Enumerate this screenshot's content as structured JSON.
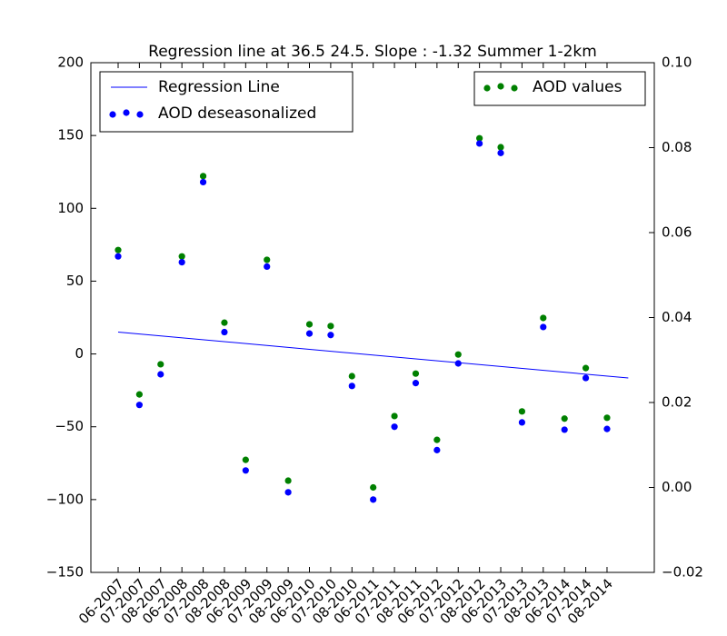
{
  "chart_data": {
    "type": "scatter",
    "title": "Regression line at 36.5 24.5. Slope : -1.32 Summer 1-2km",
    "categories": [
      "06-2007",
      "07-2007",
      "08-2007",
      "06-2008",
      "07-2008",
      "08-2008",
      "06-2009",
      "07-2009",
      "08-2009",
      "06-2010",
      "07-2010",
      "08-2010",
      "06-2011",
      "07-2011",
      "08-2011",
      "06-2012",
      "07-2012",
      "08-2012",
      "06-2013",
      "07-2013",
      "08-2013",
      "06-2014",
      "07-2014",
      "08-2014"
    ],
    "series": [
      {
        "name": "AOD deseasonalized",
        "color": "#0000ff",
        "axis": "y",
        "values": [
          67,
          -35,
          -14,
          63,
          118,
          15,
          -80,
          60,
          -95,
          14,
          13,
          -22,
          -100,
          -50,
          -20,
          -66,
          -6.5,
          144.5,
          138,
          -47,
          18.5,
          -52,
          -16.5,
          -51.5
        ]
      },
      {
        "name": "AOD values",
        "color": "#008000",
        "axis": "y2",
        "values": [
          0.0559,
          0.0219,
          0.029,
          0.0544,
          0.0733,
          0.0388,
          0.0065,
          0.0536,
          0.0016,
          0.0384,
          0.038,
          0.0262,
          0.0,
          0.0168,
          0.0268,
          0.0112,
          0.0313,
          0.0822,
          0.0801,
          0.0179,
          0.0399,
          0.0162,
          0.0281,
          0.0164
        ]
      }
    ],
    "regression": {
      "name": "Regression Line",
      "color": "#0000ff",
      "x": [
        0,
        24
      ],
      "values": [
        15,
        -16.5
      ]
    },
    "ylim": [
      -150,
      200
    ],
    "yticks": [
      {
        "value": -150,
        "label": "−150"
      },
      {
        "value": -100,
        "label": "−100"
      },
      {
        "value": -50,
        "label": "−50"
      },
      0,
      50,
      100,
      150,
      200
    ],
    "y2lim": [
      -0.02,
      0.1
    ],
    "y2ticks": [
      {
        "value": -0.02,
        "label": "−0.02"
      },
      {
        "value": 0,
        "label": "0.00"
      },
      {
        "value": 0.02,
        "label": "0.02"
      },
      {
        "value": 0.04,
        "label": "0.04"
      },
      {
        "value": 0.06,
        "label": "0.06"
      },
      {
        "value": 0.08,
        "label": "0.08"
      },
      {
        "value": 0.1,
        "label": "0.10"
      }
    ],
    "legend": "upper left",
    "legend2": "upper right"
  }
}
